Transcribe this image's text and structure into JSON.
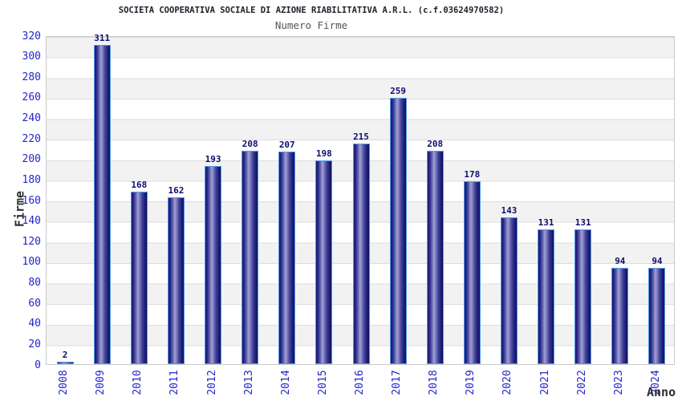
{
  "chart_data": {
    "type": "bar",
    "title": "SOCIETA COOPERATIVA SOCIALE DI AZIONE RIABILITATIVA A.R.L. (c.f.03624970582)",
    "subtitle": "Numero Firme",
    "xlabel": "Anno",
    "ylabel": "Firme",
    "categories": [
      "2008",
      "2009",
      "2010",
      "2011",
      "2012",
      "2013",
      "2014",
      "2015",
      "2016",
      "2017",
      "2018",
      "2019",
      "2020",
      "2021",
      "2022",
      "2023",
      "2024"
    ],
    "values": [
      2,
      311,
      168,
      162,
      193,
      208,
      207,
      198,
      215,
      259,
      208,
      178,
      143,
      131,
      131,
      94,
      94
    ],
    "ylim": [
      0,
      320
    ],
    "ytick_step": 20,
    "grid": "alternating-horizontal-bands",
    "legend": "none",
    "colors": {
      "bar_dark": "#16166b",
      "bar_light": "#9f9fd4",
      "bar_border": "#4f9ce8",
      "tick_label": "#2424cf",
      "value_label": "#0d0d70",
      "title": "#1e1e28",
      "subtitle": "#56565a",
      "axis_title": "#2e2e2e",
      "band_gray": "#f2f2f2",
      "band_white": "#ffffff",
      "grid_line": "#dcdcdc",
      "plot_border": "#c9c9c9"
    }
  }
}
